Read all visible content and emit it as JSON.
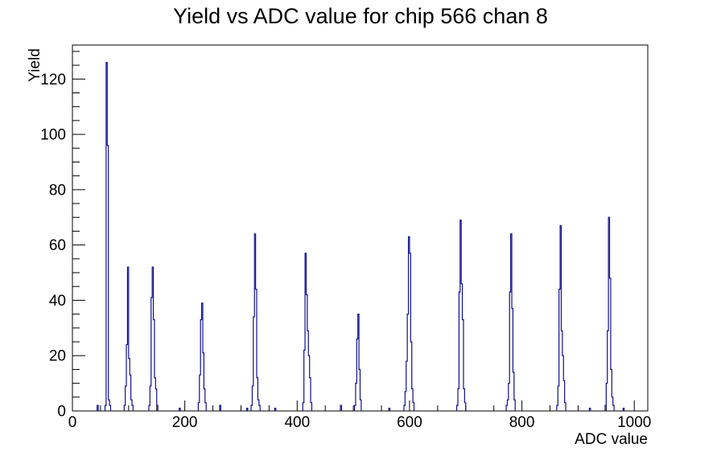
{
  "chart_data": {
    "type": "bar",
    "subtype": "root-histogram-step-outline",
    "title": "Yield vs ADC value for chip 566 chan 8",
    "xlabel": "ADC value",
    "ylabel": "Yield",
    "xlim": [
      0,
      1024
    ],
    "ylim": [
      0,
      132.3
    ],
    "grid": false,
    "legend": false,
    "x_axis": {
      "major_ticks": [
        0,
        200,
        400,
        600,
        800,
        1000
      ],
      "minor_step": 50
    },
    "y_axis": {
      "major_ticks": [
        0,
        20,
        40,
        60,
        80,
        100,
        120
      ],
      "minor_step": 5
    },
    "line_color": "#10108e",
    "axis_color": "#000000",
    "bin_width": 2,
    "peaks": [
      {
        "start": 58,
        "heights": [
          2,
          126,
          96,
          4,
          2
        ]
      },
      {
        "start": 92,
        "heights": [
          2,
          9,
          24,
          52,
          19,
          13,
          4,
          2
        ]
      },
      {
        "start": 136,
        "heights": [
          2,
          9,
          41,
          52,
          33,
          12,
          8,
          2
        ]
      },
      {
        "start": 224,
        "heights": [
          3,
          13,
          33,
          39,
          21,
          8,
          3
        ]
      },
      {
        "start": 318,
        "heights": [
          2,
          9,
          34,
          64,
          44,
          12,
          4,
          2
        ]
      },
      {
        "start": 410,
        "heights": [
          3,
          22,
          57,
          42,
          29,
          20,
          12,
          3
        ]
      },
      {
        "start": 502,
        "heights": [
          2,
          10,
          26,
          35,
          15,
          4
        ]
      },
      {
        "start": 590,
        "heights": [
          2,
          7,
          18,
          35,
          63,
          57,
          25,
          8,
          3
        ]
      },
      {
        "start": 684,
        "heights": [
          2,
          8,
          43,
          69,
          46,
          33,
          8,
          3
        ]
      },
      {
        "start": 772,
        "heights": [
          2,
          4,
          10,
          43,
          64,
          37,
          14,
          4
        ]
      },
      {
        "start": 862,
        "heights": [
          2,
          9,
          44,
          67,
          29,
          20,
          11,
          3
        ]
      },
      {
        "start": 948,
        "heights": [
          2,
          10,
          29,
          70,
          48,
          15,
          5,
          2
        ]
      }
    ],
    "noise_bins": [
      {
        "x": 44,
        "h": 2
      },
      {
        "x": 190,
        "h": 1
      },
      {
        "x": 262,
        "h": 2
      },
      {
        "x": 310,
        "h": 1
      },
      {
        "x": 360,
        "h": 1
      },
      {
        "x": 477,
        "h": 2
      },
      {
        "x": 563,
        "h": 1
      },
      {
        "x": 920,
        "h": 1
      },
      {
        "x": 980,
        "h": 1
      }
    ]
  }
}
